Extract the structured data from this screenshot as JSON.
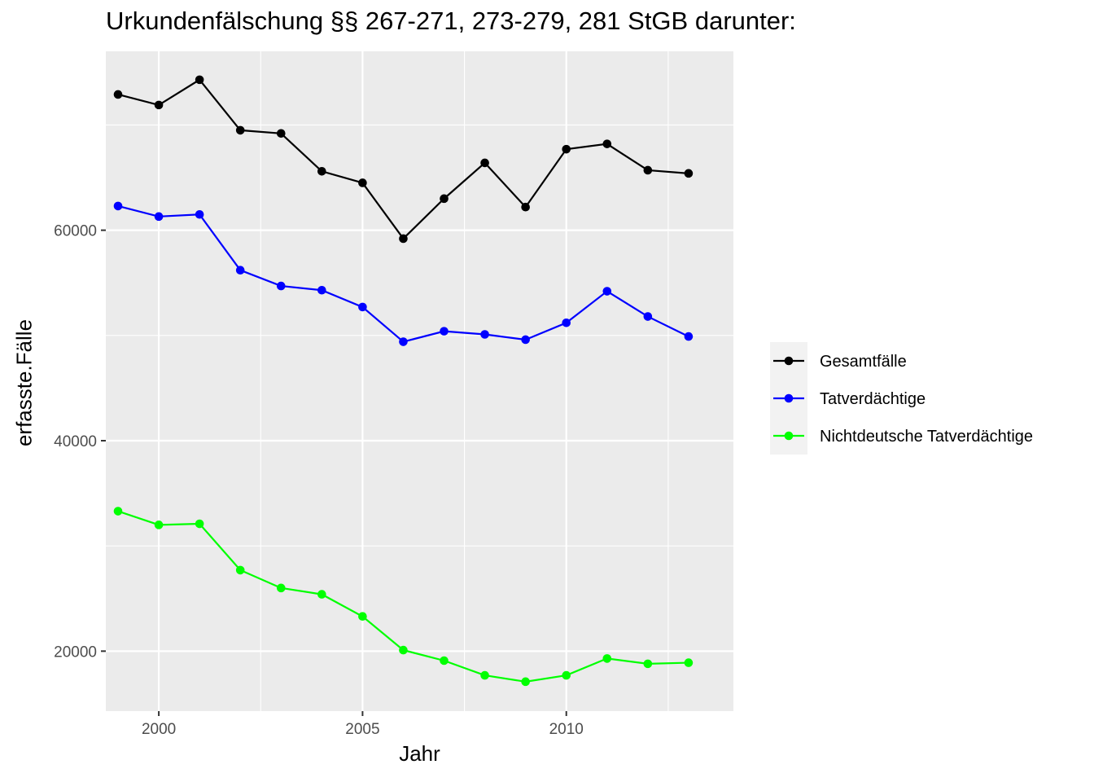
{
  "chart_data": {
    "type": "line",
    "title": "Urkundenfälschung §§ 267-271, 273-279, 281 StGB darunter:",
    "xlabel": "Jahr",
    "ylabel": "erfasste.Fälle",
    "x": [
      1999,
      2000,
      2001,
      2002,
      2003,
      2004,
      2005,
      2006,
      2007,
      2008,
      2009,
      2010,
      2011,
      2012,
      2013
    ],
    "xlim": [
      1998.7,
      2014.1
    ],
    "ylim": [
      14300,
      77000
    ],
    "x_ticks": [
      2000,
      2005,
      2010
    ],
    "x_tick_labels": [
      "2000",
      "2005",
      "2010"
    ],
    "y_ticks": [
      20000,
      40000,
      60000
    ],
    "y_tick_labels": [
      "20000",
      "40000",
      "60000"
    ],
    "grid": true,
    "legend_position": "right",
    "series": [
      {
        "name": "Gesamtfälle",
        "color": "#000000",
        "values": [
          72900,
          71900,
          74300,
          69500,
          69200,
          65600,
          64500,
          59200,
          63000,
          66400,
          62200,
          67700,
          68200,
          65700,
          65400
        ]
      },
      {
        "name": "Tatverdächtige",
        "color": "#0000ff",
        "values": [
          62300,
          61300,
          61500,
          56200,
          54700,
          54300,
          52700,
          49400,
          50400,
          50100,
          49600,
          51200,
          54200,
          51800,
          49900
        ]
      },
      {
        "name": "Nichtdeutsche Tatverdächtige",
        "color": "#00ff00",
        "values": [
          33300,
          32000,
          32100,
          27700,
          26000,
          25400,
          23300,
          20100,
          19100,
          17700,
          17100,
          17700,
          19300,
          18800,
          18900
        ]
      }
    ]
  }
}
